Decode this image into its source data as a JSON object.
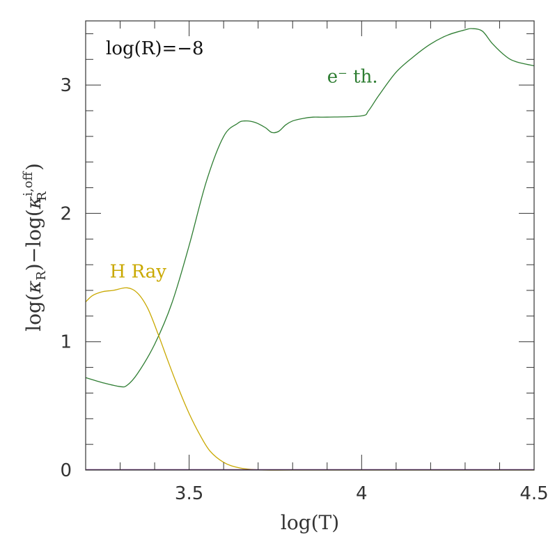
{
  "chart_data": {
    "type": "line",
    "annotation": "log(R)=−8",
    "xlabel": "log(T)",
    "ylabel_parts": {
      "prefix": "log(",
      "kappa1": "κ",
      "sub1": "R",
      "mid": ")−log(",
      "kappa2": "κ",
      "sup2": "i,off",
      "sub2": "R",
      "suffix": ")"
    },
    "xlim": [
      3.2,
      4.5
    ],
    "ylim": [
      0,
      3.5
    ],
    "x_ticks": [
      {
        "value": 3.5,
        "label": "3.5"
      },
      {
        "value": 4.0,
        "label": "4"
      },
      {
        "value": 4.5,
        "label": "4.5"
      }
    ],
    "y_ticks": [
      {
        "value": 0,
        "label": "0"
      },
      {
        "value": 1,
        "label": "1"
      },
      {
        "value": 2,
        "label": "2"
      },
      {
        "value": 3,
        "label": "3"
      }
    ],
    "x_minor_step": 0.1,
    "y_minor_step": 0.2,
    "grid": false,
    "series": [
      {
        "name": "e⁻ th.",
        "color": "#2e7d32",
        "label_at": [
          3.9,
          3.02
        ],
        "x": [
          3.2,
          3.25,
          3.3,
          3.32,
          3.35,
          3.4,
          3.45,
          3.5,
          3.55,
          3.6,
          3.64,
          3.66,
          3.69,
          3.72,
          3.74,
          3.76,
          3.78,
          3.8,
          3.83,
          3.86,
          3.9,
          4.0,
          4.02,
          4.05,
          4.1,
          4.15,
          4.2,
          4.25,
          4.3,
          4.32,
          4.35,
          4.38,
          4.42,
          4.45,
          4.5
        ],
        "y": [
          0.72,
          0.68,
          0.65,
          0.66,
          0.75,
          0.98,
          1.3,
          1.75,
          2.25,
          2.6,
          2.7,
          2.72,
          2.71,
          2.67,
          2.63,
          2.64,
          2.69,
          2.72,
          2.74,
          2.75,
          2.75,
          2.76,
          2.8,
          2.92,
          3.1,
          3.22,
          3.32,
          3.39,
          3.43,
          3.44,
          3.42,
          3.32,
          3.22,
          3.18,
          3.15
        ]
      },
      {
        "name": "H Ray",
        "color": "#c9a800",
        "label_at": [
          3.27,
          1.5
        ],
        "x": [
          3.2,
          3.22,
          3.25,
          3.28,
          3.32,
          3.35,
          3.38,
          3.41,
          3.44,
          3.47,
          3.5,
          3.53,
          3.56,
          3.6,
          3.64,
          3.68,
          3.72,
          3.8,
          4.0,
          4.5
        ],
        "y": [
          1.31,
          1.36,
          1.39,
          1.4,
          1.42,
          1.38,
          1.26,
          1.06,
          0.84,
          0.63,
          0.44,
          0.28,
          0.15,
          0.06,
          0.02,
          0.005,
          0.0,
          0.0,
          0.0,
          0.0
        ]
      },
      {
        "name": "",
        "color": "#5a1f6b",
        "x": [
          3.2,
          4.5
        ],
        "y": [
          0.003,
          0.003
        ]
      }
    ]
  }
}
